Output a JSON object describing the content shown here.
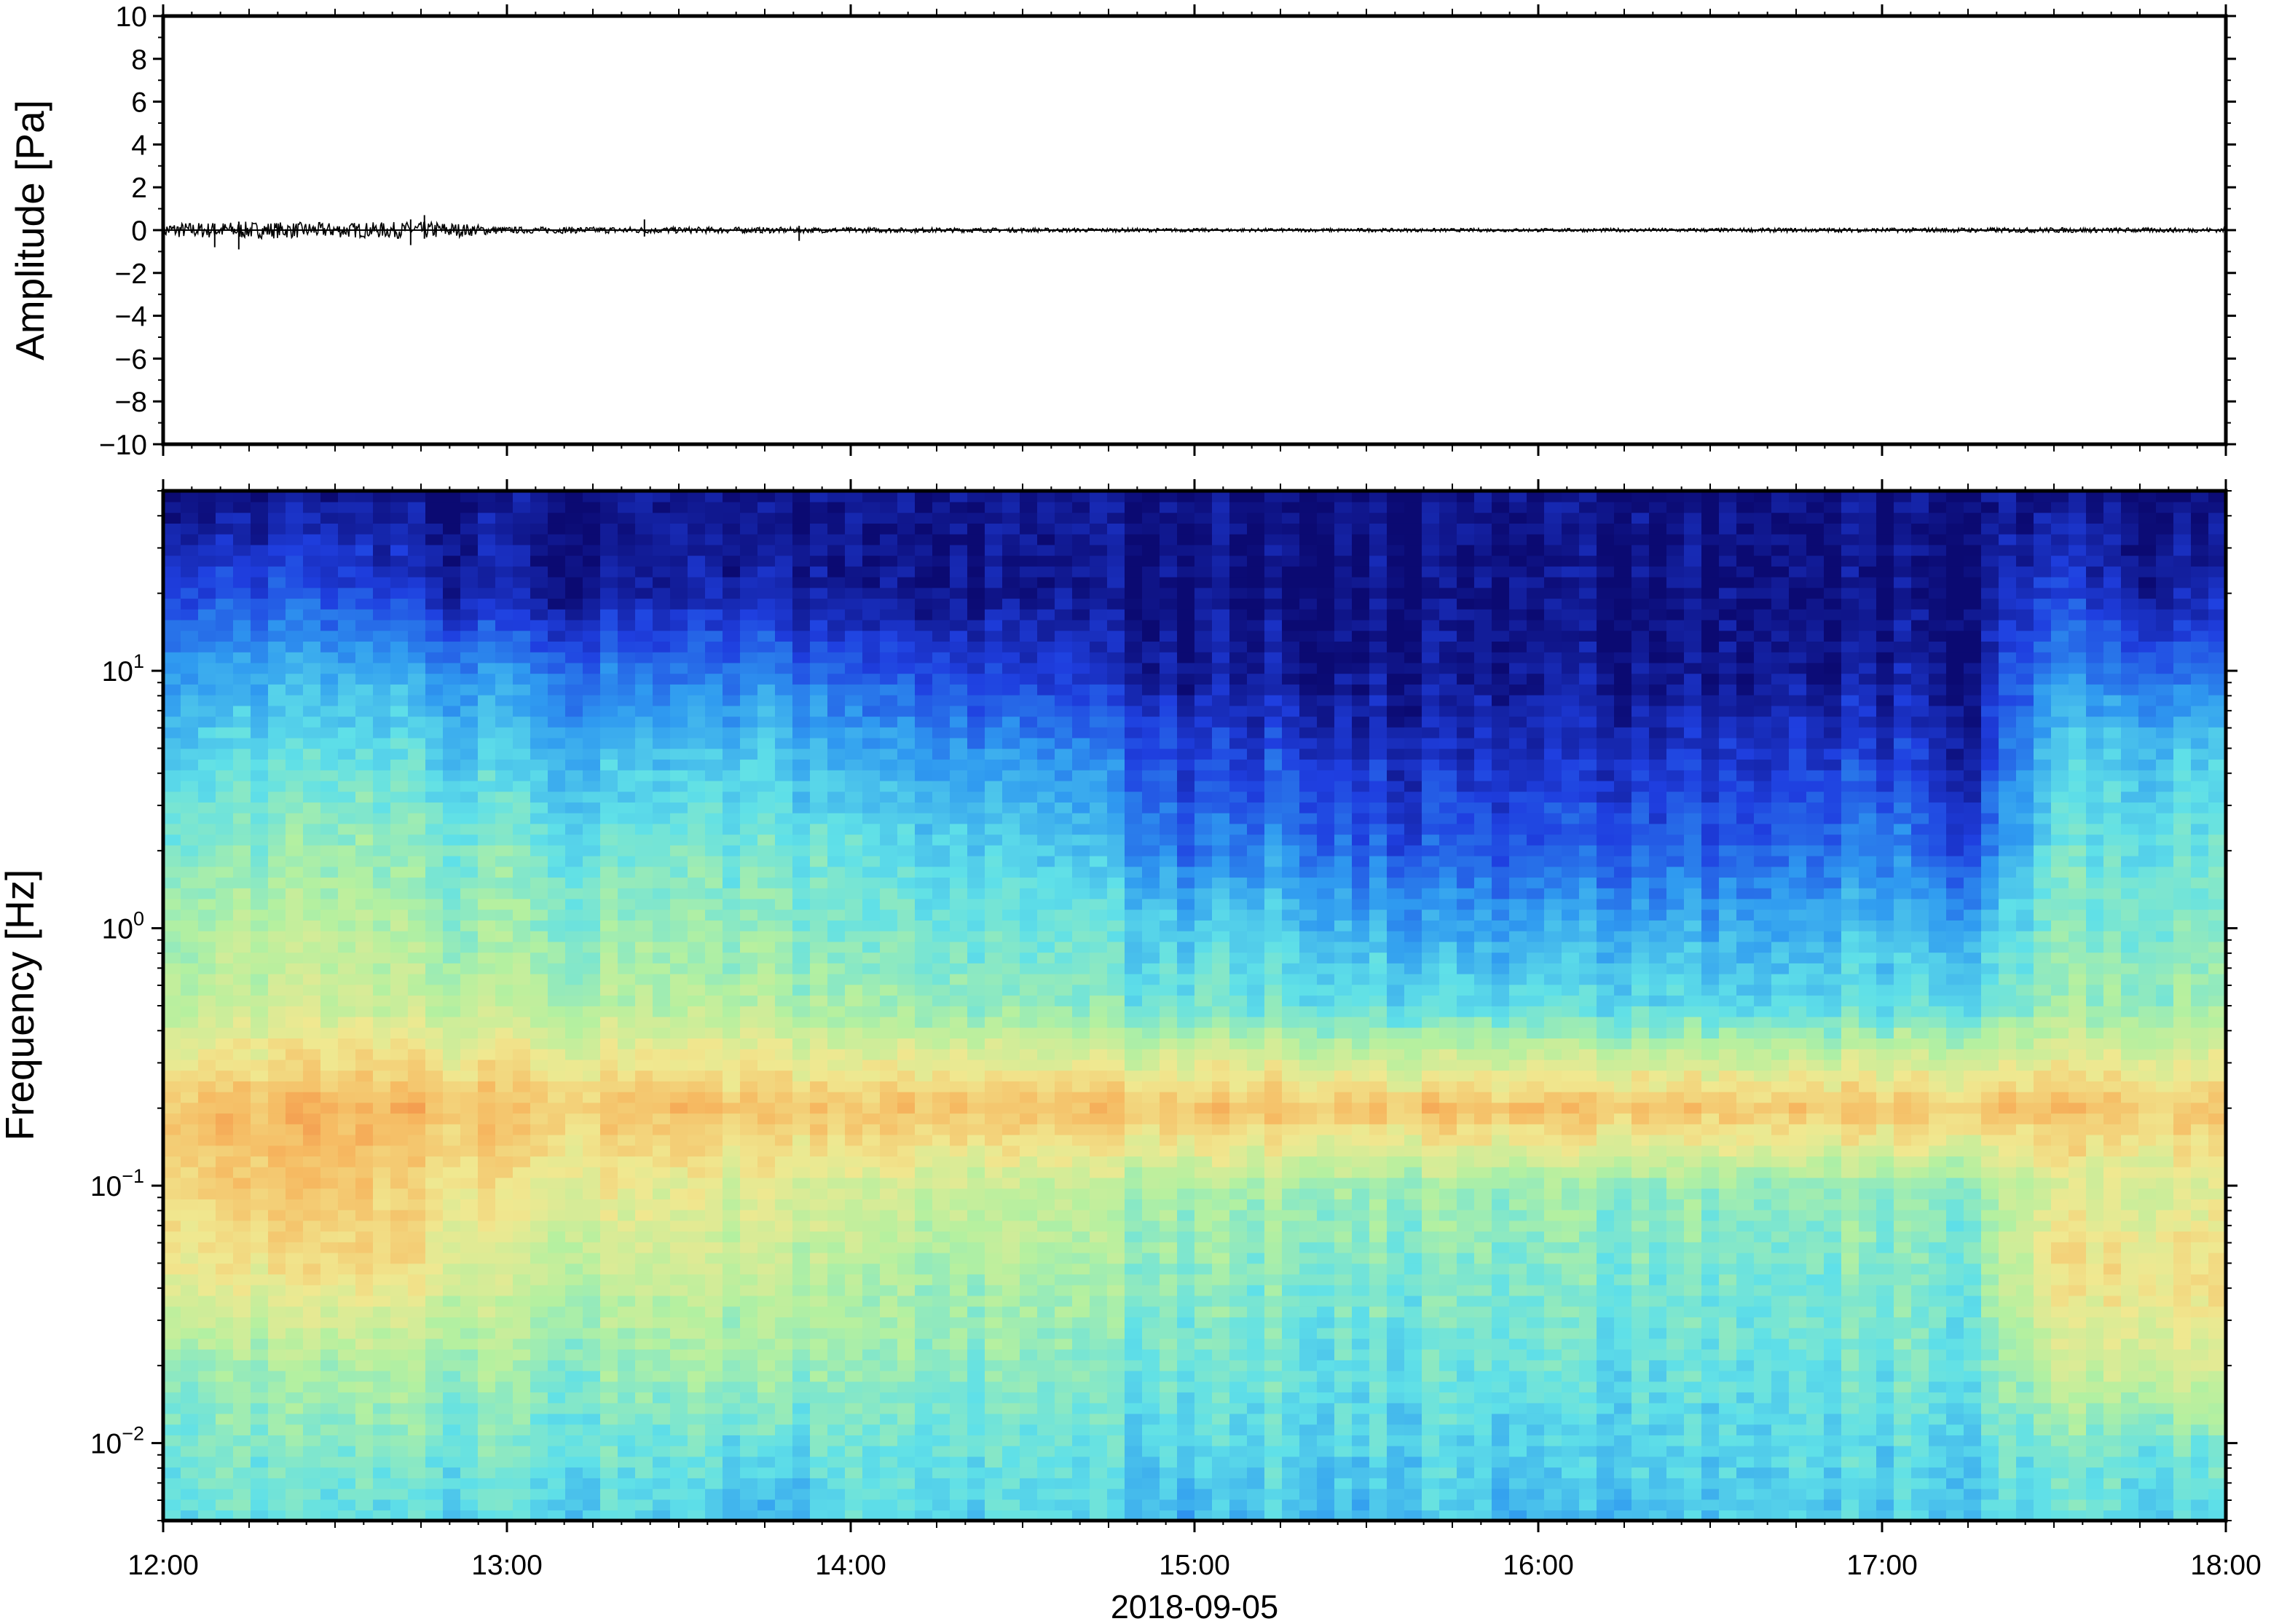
{
  "chart_data": [
    {
      "type": "line",
      "panel": "waveform",
      "ylabel": "Amplitude [Pa]",
      "ylim": [
        -10,
        10
      ],
      "yticks": [
        10,
        8,
        6,
        4,
        2,
        0,
        -2,
        -4,
        -6,
        -8,
        -10
      ],
      "ytick_labels": [
        "10",
        "8",
        "6",
        "4",
        "2",
        "0",
        "−2",
        "−4",
        "−6",
        "−8",
        "−10"
      ],
      "xlim": [
        "2018-09-05 12:00",
        "2018-09-05 18:00"
      ],
      "series_color": "#000000",
      "envelope": {
        "x_hours": [
          12.0,
          12.25,
          12.5,
          12.8,
          13.0,
          13.5,
          14.0,
          14.5,
          15.0,
          16.0,
          17.0,
          17.5,
          18.0
        ],
        "half_range_pa": [
          0.35,
          0.4,
          0.35,
          0.4,
          0.15,
          0.15,
          0.12,
          0.1,
          0.08,
          0.08,
          0.1,
          0.12,
          0.1
        ]
      },
      "spikes": [
        {
          "x_hours": 12.15,
          "low": -0.8,
          "high": 0.3
        },
        {
          "x_hours": 12.22,
          "low": -0.9,
          "high": 0.4
        },
        {
          "x_hours": 12.72,
          "low": -0.7,
          "high": 0.5
        },
        {
          "x_hours": 12.76,
          "low": -0.4,
          "high": 0.7
        },
        {
          "x_hours": 13.4,
          "low": -0.3,
          "high": 0.5
        },
        {
          "x_hours": 13.85,
          "low": -0.5,
          "high": 0.2
        }
      ]
    },
    {
      "type": "heatmap",
      "panel": "spectrogram",
      "ylabel": "Frequency [Hz]",
      "yscale": "log",
      "ylim": [
        0.005,
        50
      ],
      "yticks": [
        0.01,
        0.1,
        1,
        10
      ],
      "ytick_labels": [
        {
          "base": "10",
          "exp": "−2"
        },
        {
          "base": "10",
          "exp": "−1"
        },
        {
          "base": "10",
          "exp": "0"
        },
        {
          "base": "10",
          "exp": "1"
        }
      ],
      "xlabel": "2018-09-05",
      "xlim": [
        "12:00",
        "18:00"
      ],
      "xticks": [
        "12:00",
        "13:00",
        "14:00",
        "15:00",
        "16:00",
        "17:00",
        "18:00"
      ],
      "colormap": [
        "#0b0a72",
        "#1f3fe0",
        "#2f9af0",
        "#5fe0e8",
        "#b4f0a0",
        "#f0e890",
        "#f6b860",
        "#f07838"
      ],
      "intensity_scale": [
        0,
        1
      ],
      "time_columns_hours": [
        12.0,
        12.25,
        12.5,
        12.75,
        13.0,
        13.25,
        13.5,
        13.75,
        14.0,
        14.25,
        14.5,
        14.75,
        15.0,
        15.25,
        15.5,
        15.75,
        16.0,
        16.25,
        16.5,
        16.75,
        17.0,
        17.25,
        17.5,
        17.75
      ],
      "frequency_rows_hz": [
        0.005,
        0.01,
        0.02,
        0.05,
        0.1,
        0.2,
        0.5,
        1,
        2,
        5,
        10,
        20,
        50
      ],
      "intensity": [
        [
          0.45,
          0.5,
          0.55,
          0.75,
          0.8,
          0.85,
          0.62,
          0.58,
          0.52,
          0.42,
          0.32,
          0.18,
          0.02
        ],
        [
          0.45,
          0.5,
          0.55,
          0.72,
          0.8,
          0.85,
          0.62,
          0.58,
          0.52,
          0.42,
          0.32,
          0.18,
          0.02
        ],
        [
          0.42,
          0.48,
          0.55,
          0.75,
          0.8,
          0.85,
          0.62,
          0.58,
          0.52,
          0.42,
          0.32,
          0.15,
          0.02
        ],
        [
          0.42,
          0.48,
          0.55,
          0.72,
          0.75,
          0.85,
          0.6,
          0.55,
          0.5,
          0.4,
          0.3,
          0.1,
          0.02
        ],
        [
          0.42,
          0.46,
          0.52,
          0.62,
          0.7,
          0.82,
          0.58,
          0.52,
          0.48,
          0.36,
          0.26,
          0.05,
          0.02
        ],
        [
          0.4,
          0.46,
          0.52,
          0.62,
          0.7,
          0.82,
          0.58,
          0.52,
          0.46,
          0.34,
          0.22,
          0.05,
          0.02
        ],
        [
          0.38,
          0.44,
          0.52,
          0.6,
          0.66,
          0.82,
          0.56,
          0.5,
          0.46,
          0.34,
          0.2,
          0.04,
          0.02
        ],
        [
          0.3,
          0.44,
          0.55,
          0.62,
          0.68,
          0.82,
          0.58,
          0.52,
          0.48,
          0.38,
          0.26,
          0.08,
          0.02
        ],
        [
          0.42,
          0.46,
          0.52,
          0.58,
          0.64,
          0.82,
          0.54,
          0.48,
          0.44,
          0.32,
          0.18,
          0.04,
          0.02
        ],
        [
          0.4,
          0.44,
          0.5,
          0.56,
          0.62,
          0.82,
          0.52,
          0.46,
          0.4,
          0.28,
          0.15,
          0.03,
          0.02
        ],
        [
          0.4,
          0.44,
          0.5,
          0.56,
          0.6,
          0.82,
          0.5,
          0.44,
          0.38,
          0.26,
          0.12,
          0.03,
          0.02
        ],
        [
          0.38,
          0.42,
          0.48,
          0.54,
          0.58,
          0.82,
          0.48,
          0.42,
          0.34,
          0.22,
          0.08,
          0.02,
          0.02
        ],
        [
          0.32,
          0.4,
          0.46,
          0.5,
          0.56,
          0.82,
          0.46,
          0.38,
          0.22,
          0.12,
          0.04,
          0.02,
          0.02
        ],
        [
          0.38,
          0.42,
          0.46,
          0.5,
          0.56,
          0.82,
          0.46,
          0.38,
          0.28,
          0.15,
          0.05,
          0.02,
          0.02
        ],
        [
          0.34,
          0.4,
          0.44,
          0.5,
          0.54,
          0.82,
          0.44,
          0.34,
          0.2,
          0.1,
          0.03,
          0.02,
          0.02
        ],
        [
          0.38,
          0.4,
          0.44,
          0.48,
          0.54,
          0.82,
          0.42,
          0.3,
          0.18,
          0.08,
          0.03,
          0.02,
          0.02
        ],
        [
          0.3,
          0.38,
          0.44,
          0.48,
          0.52,
          0.82,
          0.42,
          0.3,
          0.18,
          0.08,
          0.03,
          0.02,
          0.02
        ],
        [
          0.36,
          0.4,
          0.44,
          0.48,
          0.52,
          0.82,
          0.42,
          0.32,
          0.2,
          0.1,
          0.03,
          0.02,
          0.02
        ],
        [
          0.38,
          0.4,
          0.44,
          0.48,
          0.52,
          0.82,
          0.42,
          0.32,
          0.2,
          0.1,
          0.03,
          0.02,
          0.02
        ],
        [
          0.38,
          0.42,
          0.44,
          0.48,
          0.52,
          0.82,
          0.42,
          0.32,
          0.22,
          0.12,
          0.04,
          0.02,
          0.02
        ],
        [
          0.4,
          0.42,
          0.46,
          0.5,
          0.54,
          0.82,
          0.44,
          0.36,
          0.26,
          0.14,
          0.06,
          0.02,
          0.02
        ],
        [
          0.38,
          0.42,
          0.46,
          0.48,
          0.52,
          0.82,
          0.44,
          0.34,
          0.16,
          0.08,
          0.04,
          0.02,
          0.02
        ],
        [
          0.44,
          0.48,
          0.6,
          0.72,
          0.64,
          0.82,
          0.52,
          0.48,
          0.44,
          0.36,
          0.26,
          0.14,
          0.02
        ],
        [
          0.42,
          0.48,
          0.66,
          0.76,
          0.66,
          0.82,
          0.54,
          0.5,
          0.46,
          0.38,
          0.22,
          0.08,
          0.02
        ]
      ]
    }
  ]
}
